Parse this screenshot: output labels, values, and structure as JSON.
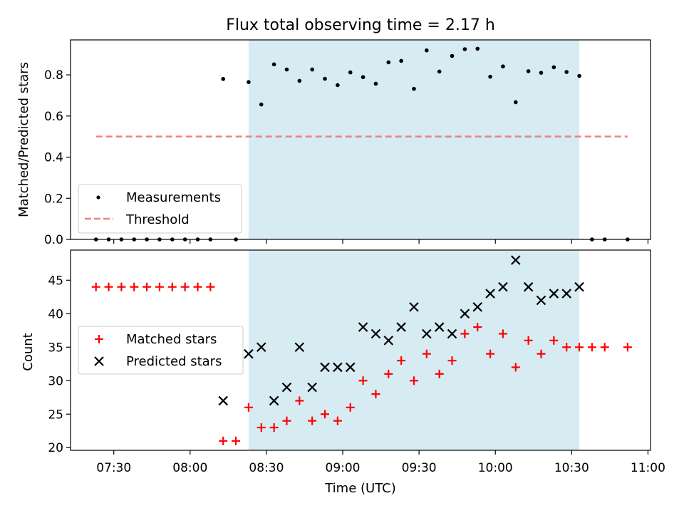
{
  "chart_data": [
    {
      "type": "scatter",
      "title": "Flux total observing time = 2.17 h",
      "xlabel": "",
      "ylabel": "Matched/Predicted stars",
      "xlim": [
        "07:13",
        "11:01"
      ],
      "ylim": [
        0,
        0.97
      ],
      "yticks": [
        0.0,
        0.2,
        0.4,
        0.6,
        0.8
      ],
      "ytick_labels": [
        "0.0",
        "0.2",
        "0.4",
        "0.6",
        "0.8"
      ],
      "xticks": [
        "07:30",
        "08:00",
        "08:30",
        "09:00",
        "09:30",
        "10:00",
        "10:30",
        "11:00"
      ],
      "xtick_labels_shown": false,
      "observing_window": {
        "start": "08:23",
        "end": "10:33",
        "color": "#add8e6"
      },
      "legend": {
        "location": "lower-left",
        "entries": [
          "Measurements",
          "Threshold"
        ]
      },
      "series": [
        {
          "name": "Measurements",
          "marker": "dot",
          "color": "#000000",
          "x": [
            "07:23",
            "07:28",
            "07:33",
            "07:38",
            "07:43",
            "07:48",
            "07:53",
            "07:58",
            "08:03",
            "08:08",
            "08:13",
            "08:18",
            "08:23",
            "08:28",
            "08:33",
            "08:38",
            "08:43",
            "08:48",
            "08:53",
            "08:58",
            "09:03",
            "09:08",
            "09:13",
            "09:18",
            "09:23",
            "09:28",
            "09:33",
            "09:38",
            "09:43",
            "09:48",
            "09:53",
            "09:58",
            "10:03",
            "10:08",
            "10:13",
            "10:18",
            "10:23",
            "10:28",
            "10:33",
            "10:38",
            "10:43",
            "10:52"
          ],
          "y": [
            0.0,
            0.0,
            0.0,
            0.0,
            0.0,
            0.0,
            0.0,
            0.0,
            0.0,
            0.0,
            0.78,
            0.0,
            0.765,
            0.656,
            0.851,
            0.826,
            0.771,
            0.826,
            0.781,
            0.75,
            0.812,
            0.789,
            0.757,
            0.861,
            0.868,
            0.732,
            0.919,
            0.816,
            0.892,
            0.925,
            0.927,
            0.791,
            0.841,
            0.667,
            0.818,
            0.81,
            0.837,
            0.814,
            0.795,
            0.0,
            0.0,
            0.0
          ]
        },
        {
          "name": "Threshold",
          "style": "dashed",
          "color": "#f08080",
          "x": [
            "07:23",
            "10:52"
          ],
          "y": [
            0.5,
            0.5
          ]
        }
      ]
    },
    {
      "type": "scatter",
      "title": "",
      "xlabel": "Time (UTC)",
      "ylabel": "Count",
      "xlim": [
        "07:13",
        "11:01"
      ],
      "ylim": [
        19.6,
        49.5
      ],
      "yticks": [
        20,
        25,
        30,
        35,
        40,
        45
      ],
      "ytick_labels": [
        "20",
        "25",
        "30",
        "35",
        "40",
        "45"
      ],
      "xticks": [
        "07:30",
        "08:00",
        "08:30",
        "09:00",
        "09:30",
        "10:00",
        "10:30",
        "11:00"
      ],
      "xtick_labels": [
        "07:30",
        "08:00",
        "08:30",
        "09:00",
        "09:30",
        "10:00",
        "10:30",
        "11:00"
      ],
      "observing_window": {
        "start": "08:23",
        "end": "10:33",
        "color": "#add8e6"
      },
      "legend": {
        "location": "center-left",
        "entries": [
          "Matched stars",
          "Predicted stars"
        ]
      },
      "series": [
        {
          "name": "Matched stars",
          "marker": "plus",
          "color": "#ff0000",
          "x": [
            "07:23",
            "07:28",
            "07:33",
            "07:38",
            "07:43",
            "07:48",
            "07:53",
            "07:58",
            "08:03",
            "08:08",
            "08:13",
            "08:18",
            "08:23",
            "08:28",
            "08:33",
            "08:38",
            "08:43",
            "08:48",
            "08:53",
            "08:58",
            "09:03",
            "09:08",
            "09:13",
            "09:18",
            "09:23",
            "09:28",
            "09:33",
            "09:38",
            "09:43",
            "09:48",
            "09:53",
            "09:58",
            "10:03",
            "10:08",
            "10:13",
            "10:18",
            "10:23",
            "10:28",
            "10:33",
            "10:38",
            "10:43",
            "10:52"
          ],
          "y": [
            44,
            44,
            44,
            44,
            44,
            44,
            44,
            44,
            44,
            44,
            21,
            21,
            26,
            23,
            23,
            24,
            27,
            24,
            25,
            24,
            26,
            30,
            28,
            31,
            33,
            30,
            34,
            31,
            33,
            37,
            38,
            34,
            37,
            32,
            36,
            34,
            36,
            35,
            35,
            35,
            35,
            35
          ]
        },
        {
          "name": "Predicted stars",
          "marker": "x",
          "color": "#000000",
          "x": [
            "08:13",
            "08:23",
            "08:28",
            "08:33",
            "08:38",
            "08:43",
            "08:48",
            "08:53",
            "08:58",
            "09:03",
            "09:08",
            "09:13",
            "09:18",
            "09:23",
            "09:28",
            "09:33",
            "09:38",
            "09:43",
            "09:48",
            "09:53",
            "09:58",
            "10:03",
            "10:08",
            "10:13",
            "10:18",
            "10:23",
            "10:28",
            "10:33"
          ],
          "y": [
            27,
            34,
            35,
            27,
            29,
            35,
            29,
            32,
            32,
            32,
            38,
            37,
            36,
            38,
            41,
            37,
            38,
            37,
            40,
            41,
            43,
            44,
            48,
            44,
            42,
            43,
            43,
            44
          ]
        }
      ]
    }
  ]
}
